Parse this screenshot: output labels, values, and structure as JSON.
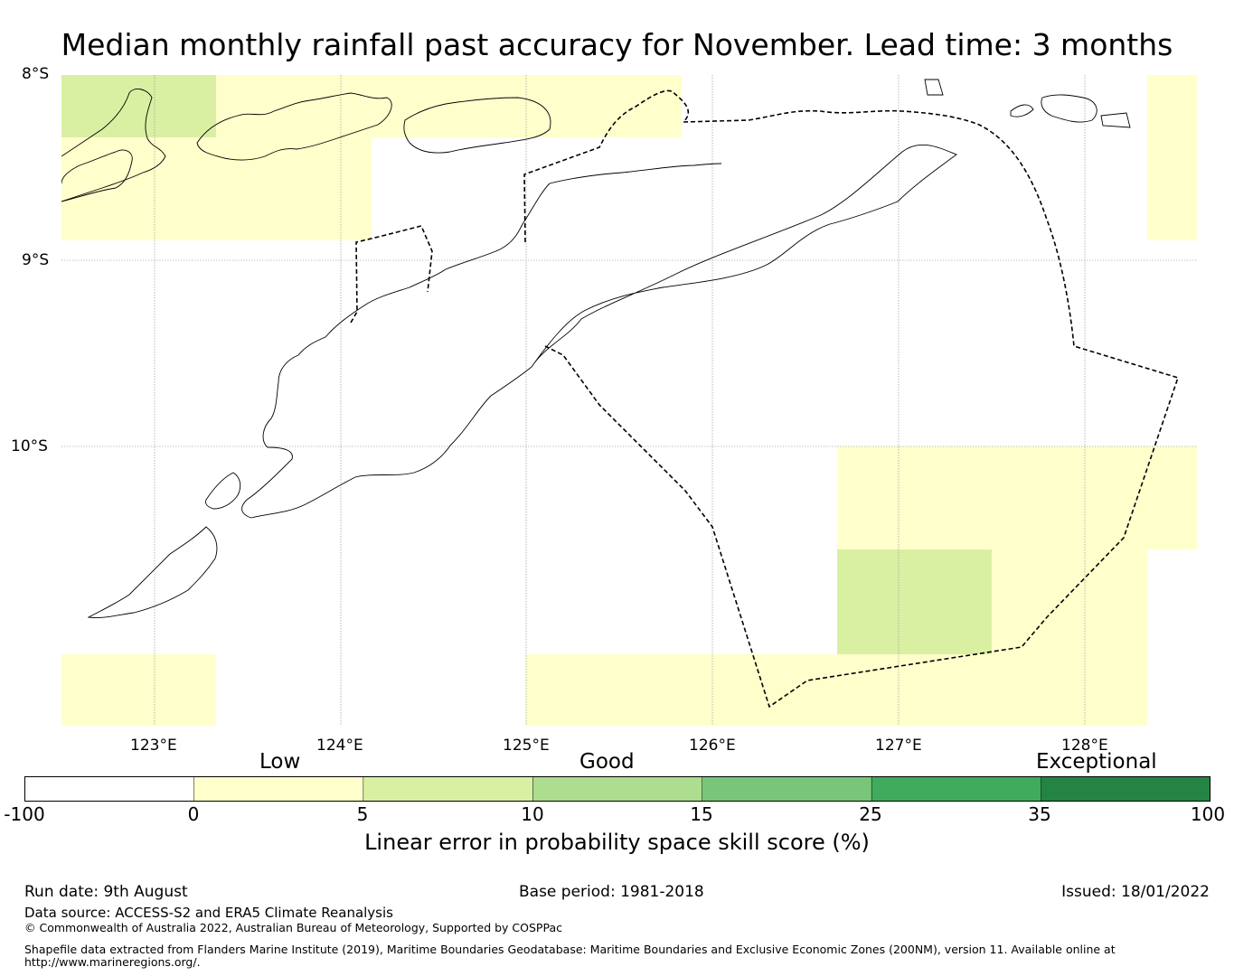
{
  "title": "Median monthly rainfall past accuracy for November. Lead time: 3 months",
  "map": {
    "lat_ticks": [
      "8°S",
      "9°S",
      "10°S"
    ],
    "lon_ticks": [
      "123°E",
      "124°E",
      "125°E",
      "126°E",
      "127°E",
      "128°E"
    ],
    "extent": {
      "lon_min": 122.5,
      "lon_max": 128.6,
      "lat_top": -8.0,
      "lat_bottom": -11.5
    },
    "colors": {
      "low": "#ffffcc",
      "good_low": "#d9f0a3",
      "boundary": "#000000"
    },
    "skill_cells": [
      {
        "lon": [
          122.5,
          123.33
        ],
        "lat": [
          -8.0,
          -8.33
        ],
        "category": "5-10"
      },
      {
        "lon": [
          123.33,
          125.83
        ],
        "lat": [
          -8.0,
          -8.33
        ],
        "category": "0-5"
      },
      {
        "lon": [
          122.5,
          124.17
        ],
        "lat": [
          -8.33,
          -8.89
        ],
        "category": "0-5"
      },
      {
        "lon": [
          128.33,
          128.6
        ],
        "lat": [
          -8.0,
          -8.89
        ],
        "category": "0-5"
      },
      {
        "lon": [
          126.67,
          128.6
        ],
        "lat": [
          -10.0,
          -10.56
        ],
        "category": "0-5"
      },
      {
        "lon": [
          126.67,
          127.5
        ],
        "lat": [
          -10.56,
          -11.11
        ],
        "category": "5-10"
      },
      {
        "lon": [
          127.5,
          128.33
        ],
        "lat": [
          -10.56,
          -11.11
        ],
        "category": "0-5"
      },
      {
        "lon": [
          125.0,
          128.33
        ],
        "lat": [
          -11.11,
          -11.5
        ],
        "category": "0-5"
      },
      {
        "lon": [
          122.5,
          123.33
        ],
        "lat": [
          -11.11,
          -11.5
        ],
        "category": "0-5"
      }
    ]
  },
  "colorbar": {
    "categories": [
      "Low",
      "Good",
      "Exceptional"
    ],
    "ticks": [
      "-100",
      "0",
      "5",
      "10",
      "15",
      "25",
      "35",
      "100"
    ],
    "colors": [
      "#ffffff",
      "#ffffcc",
      "#d9f0a3",
      "#addd8e",
      "#78c679",
      "#41ab5d",
      "#238443"
    ],
    "label": "Linear error in probability space skill score (%)"
  },
  "footer": {
    "run_date": "Run date: 9th August",
    "base_period": "Base period: 1981-2018",
    "issued": "Issued: 18/01/2022",
    "data_source": "Data source: ACCESS-S2 and ERA5 Climate Reanalysis",
    "copyright": "© Commonwealth of Australia 2022, Australian Bureau of Meteorology, Supported by COSPPac",
    "shapefile_line1": "Shapefile data extracted from Flanders Marine Institute (2019), Maritime Boundaries Geodatabase: Maritime Boundaries and Exclusive Economic Zones (200NM), version 11. Available online at",
    "shapefile_line2": "http://www.marineregions.org/."
  }
}
